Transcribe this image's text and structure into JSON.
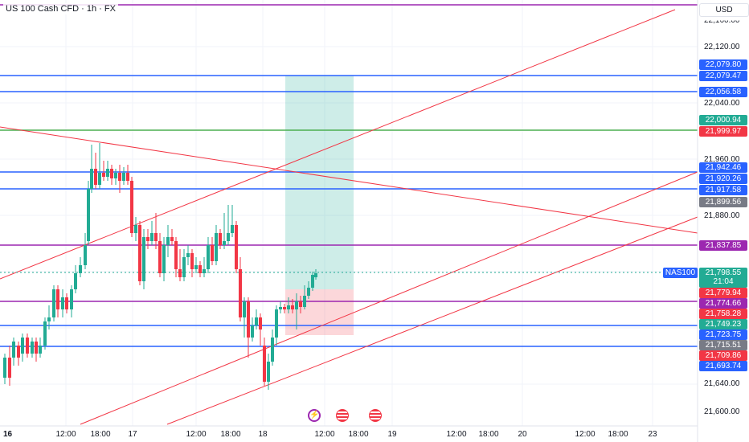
{
  "header": {
    "symbol_title": "US 100 Cash CFD · 1h · FX",
    "currency": "USD"
  },
  "price_axis": {
    "labels": [
      "22,120.00",
      "22,040.00",
      "21,960.00",
      "21,880.00",
      "21,640.00",
      "21,600.00"
    ],
    "top_partial": "22,160.00"
  },
  "price_tags": [
    {
      "text": "22,079.80",
      "color": "#2962ff"
    },
    {
      "text": "22,079.47",
      "color": "#2962ff"
    },
    {
      "text": "22,056.58",
      "color": "#2962ff"
    },
    {
      "text": "22,000.94",
      "color": "#22ab94"
    },
    {
      "text": "21,999.97",
      "color": "#f23645"
    },
    {
      "text": "21,942.46",
      "color": "#2962ff"
    },
    {
      "text": "21,920.26",
      "color": "#2962ff"
    },
    {
      "text": "21,917.58",
      "color": "#2962ff"
    },
    {
      "text": "21,899.56",
      "color": "#787b86"
    },
    {
      "text": "21,837.85",
      "color": "#9c27b0"
    },
    {
      "text": "21,779.94",
      "color": "#f23645"
    },
    {
      "text": "21,774.66",
      "color": "#9c27b0"
    },
    {
      "text": "21,758.28",
      "color": "#f23645"
    },
    {
      "text": "21,749.23",
      "color": "#22ab94"
    },
    {
      "text": "21,723.75",
      "color": "#2962ff"
    },
    {
      "text": "21,715.51",
      "color": "#787b86"
    },
    {
      "text": "21,709.86",
      "color": "#f23645"
    },
    {
      "text": "21,693.74",
      "color": "#2962ff"
    }
  ],
  "current_price": {
    "price": "21,798.55",
    "countdown": "21:04",
    "symbol": "NAS100",
    "color": "#22ab94"
  },
  "time_axis": [
    "16",
    "12:00",
    "18:00",
    "17",
    "12:00",
    "18:00",
    "18",
    "12:00",
    "18:00",
    "19",
    "12:00",
    "18:00",
    "20",
    "12:00",
    "18:00",
    "23"
  ],
  "event_icons": [
    "lightning-icon",
    "us-flag-icon",
    "us-flag-icon"
  ],
  "colors": {
    "up": "#22ab94",
    "down": "#f23645",
    "blue_level": "#2962ff",
    "purple_level": "#9c27b0",
    "green_level": "#4caf50",
    "trendline": "#f23645"
  }
}
